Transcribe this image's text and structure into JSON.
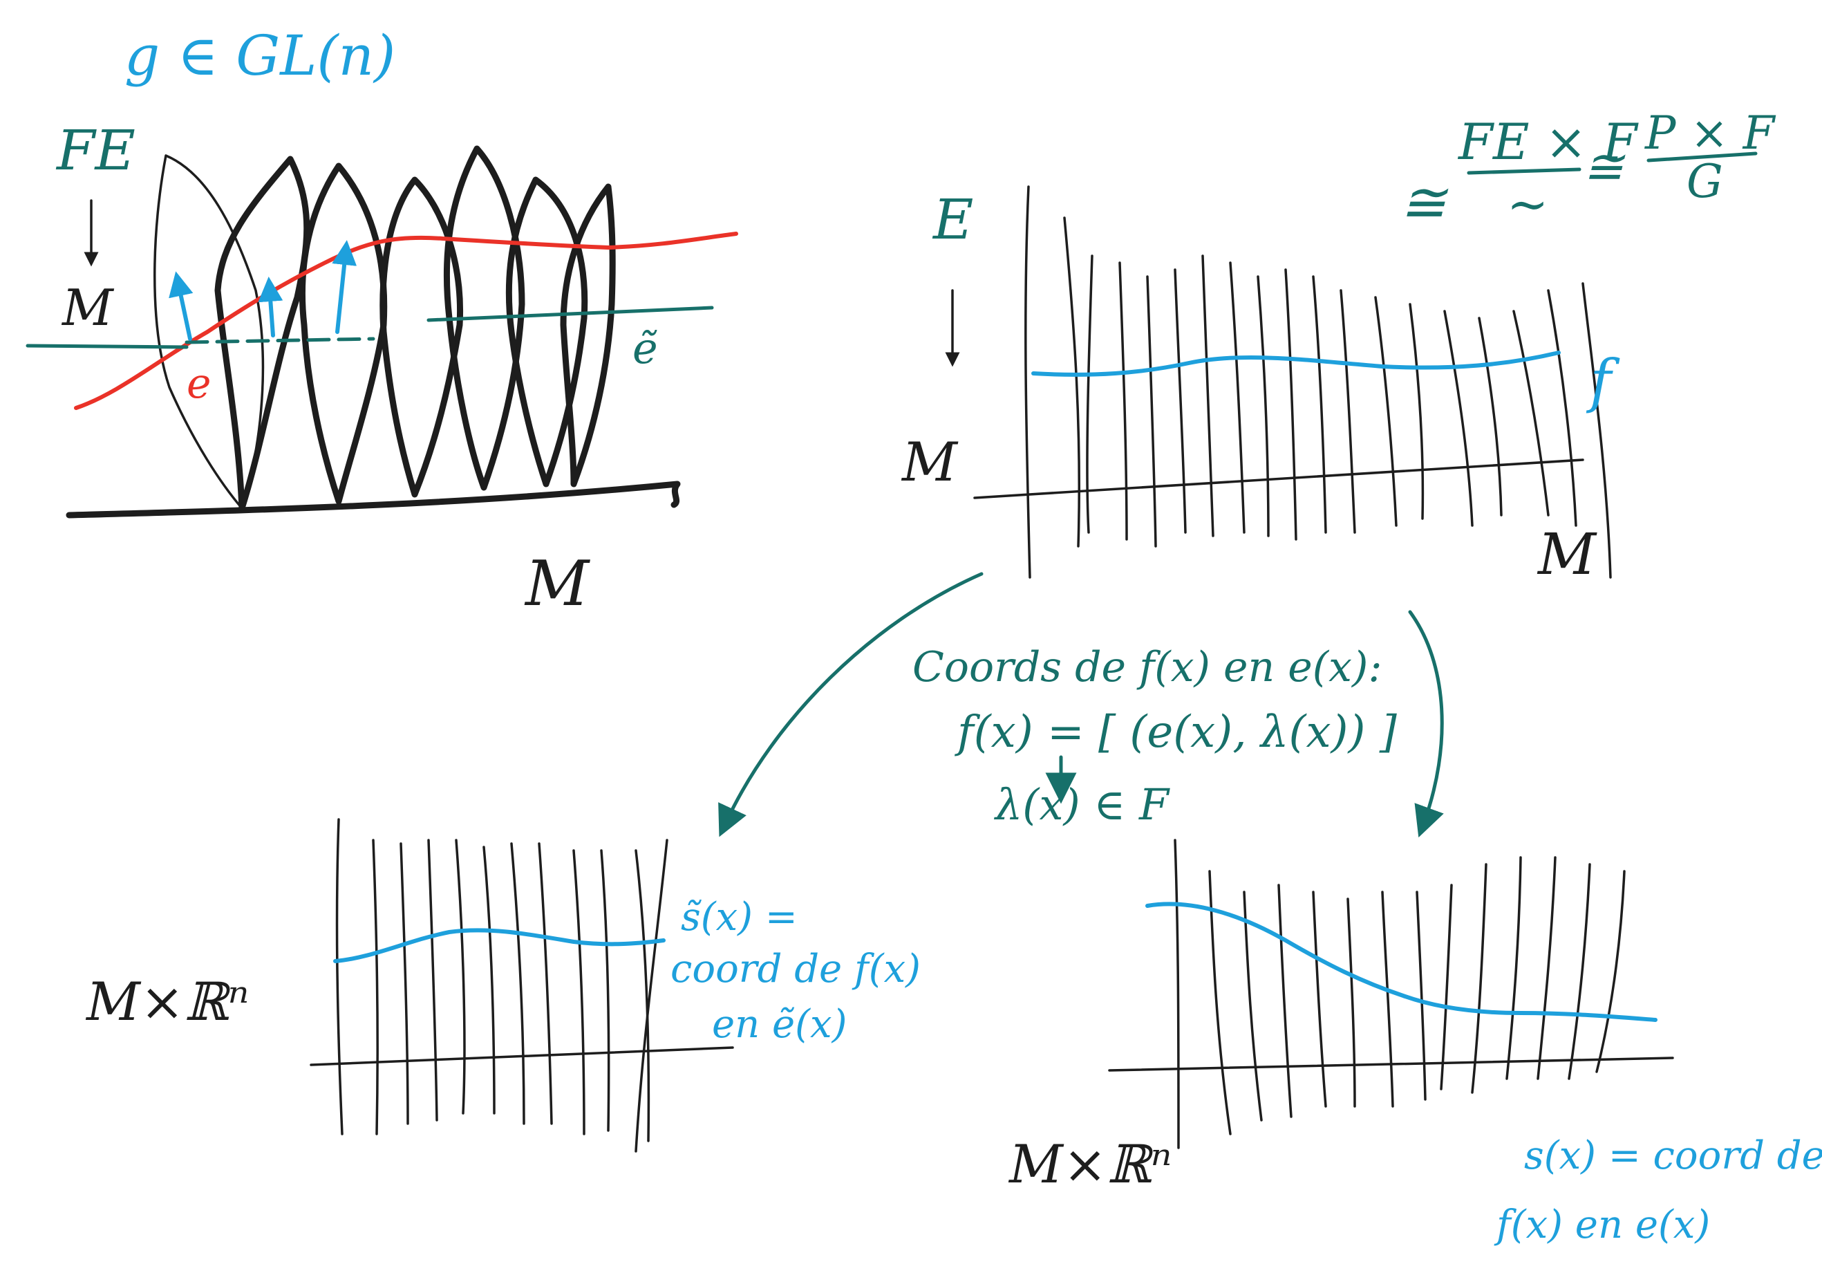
{
  "colors": {
    "ink_black": "#1d1d1d",
    "ink_blue": "#1ea0dc",
    "ink_teal": "#17706a",
    "ink_red": "#ea3228",
    "board": "#ffffff"
  },
  "top_left": {
    "group_label": "g ∈ GL(n)",
    "bundle_label": "FE",
    "base_label": "M",
    "frame_label": "e",
    "frame_tilde_label": "ẽ",
    "manifold_label": "M"
  },
  "top_right": {
    "bundle_label": "E",
    "base_side_label": "M",
    "base_bottom_label": "M",
    "section_label": "f",
    "iso_symbol_1": "≅",
    "fraction_top": "FE × F",
    "fraction_bottom": "∼",
    "iso_symbol_2": "≅",
    "fraction2_top": "P × F",
    "fraction2_bottom": "G"
  },
  "middle": {
    "line1": "Coords de f(x) en e(x):",
    "line2": "f(x) = [ (e(x), λ(x)) ]",
    "line3": "λ(x) ∈ F"
  },
  "bottom_left": {
    "space_label": "M×ℝⁿ",
    "note_line1": "s̃(x) =",
    "note_line2": "coord de f(x)",
    "note_line3": "en ẽ(x)"
  },
  "bottom_right": {
    "space_label": "M×ℝⁿ",
    "note_line1": "s(x) = coord de",
    "note_line2": "f(x) en e(x)"
  }
}
